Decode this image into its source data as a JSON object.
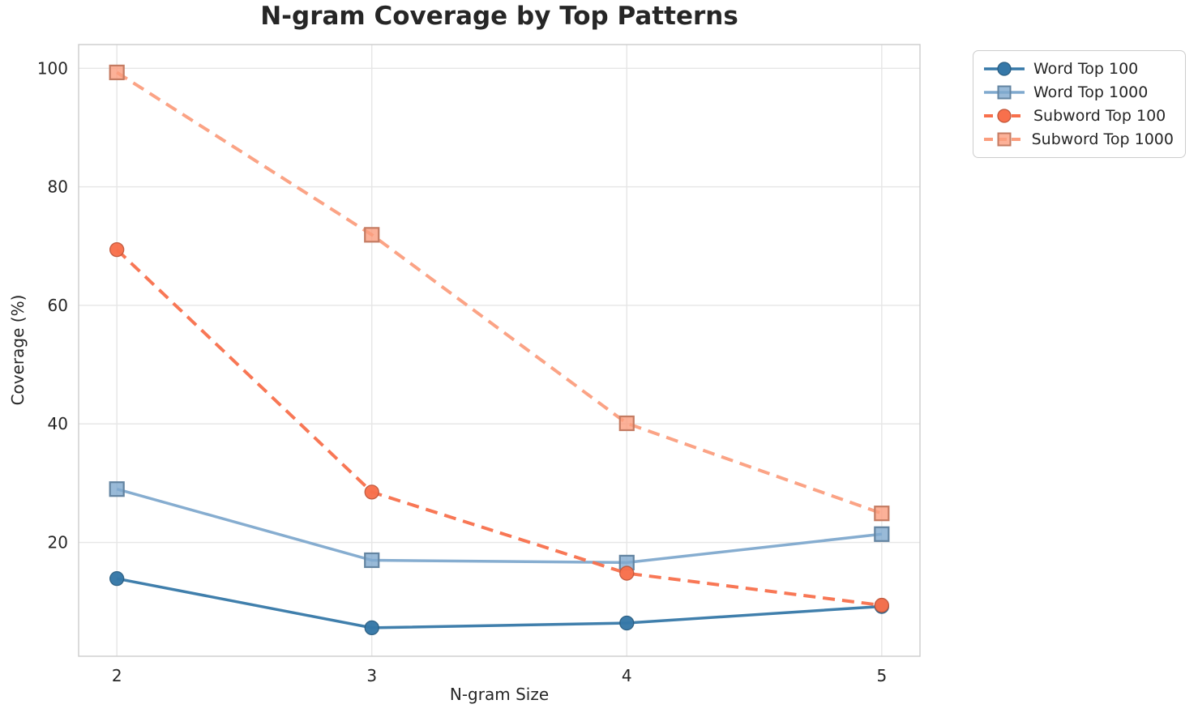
{
  "chart_data": {
    "type": "line",
    "title": "N-gram Coverage by Top Patterns",
    "xlabel": "N-gram Size",
    "ylabel": "Coverage (%)",
    "x": [
      2,
      3,
      4,
      5
    ],
    "x_tick_labels": [
      "2",
      "3",
      "4",
      "5"
    ],
    "y_ticks": [
      20,
      40,
      60,
      80,
      100
    ],
    "xlim": [
      1.85,
      5.15
    ],
    "ylim": [
      0.8,
      104.0
    ],
    "grid": true,
    "grid_color": "#e6e6e6",
    "spine_color": "#cccccc",
    "text_color": "#262626",
    "legend_position": "outside-upper-right",
    "series": [
      {
        "name": "Word Top 100",
        "values": [
          13.9,
          5.6,
          6.4,
          9.2
        ],
        "color": "#3678a8",
        "line_style": "solid",
        "marker": "circle"
      },
      {
        "name": "Word Top 1000",
        "values": [
          29.0,
          17.0,
          16.6,
          21.4
        ],
        "color": "#7fa9ce",
        "line_style": "solid",
        "marker": "square"
      },
      {
        "name": "Subword Top 100",
        "values": [
          69.4,
          28.5,
          14.8,
          9.4
        ],
        "color": "#f8704c",
        "line_style": "dashed",
        "marker": "circle"
      },
      {
        "name": "Subword Top 1000",
        "values": [
          99.3,
          71.9,
          40.1,
          24.9
        ],
        "color": "#fb9e7e",
        "line_style": "dashed",
        "marker": "square"
      }
    ]
  }
}
